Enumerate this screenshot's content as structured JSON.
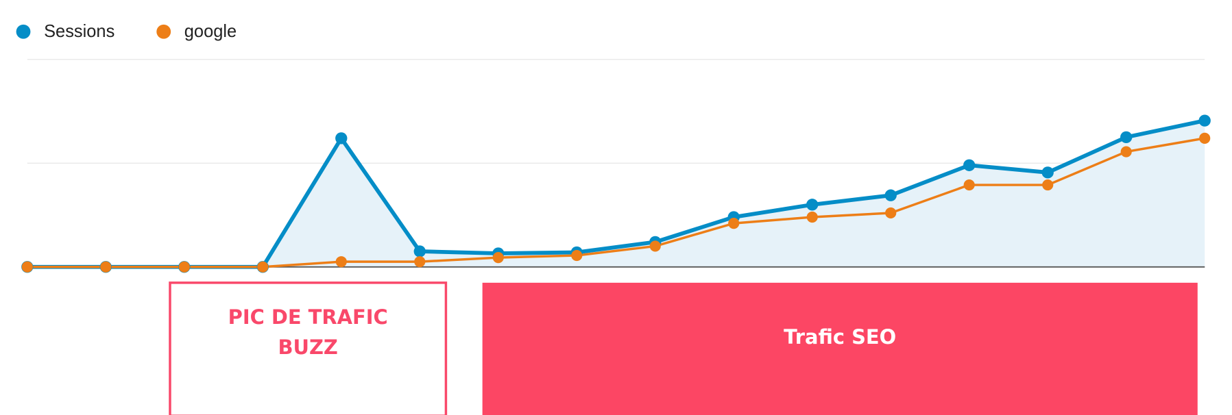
{
  "chart_data": {
    "type": "line",
    "categories": [
      null,
      null,
      null,
      null,
      null,
      null,
      null,
      null,
      null,
      null,
      null,
      null,
      null,
      null,
      null,
      null
    ],
    "series": [
      {
        "name": "Sessions",
        "color": "#058dc7",
        "fill": "#e6f2f9",
        "values": [
          0,
          0,
          0,
          0,
          1.24,
          0.15,
          0.13,
          0.14,
          0.24,
          0.48,
          0.6,
          0.69,
          0.98,
          0.91,
          1.25,
          1.41
        ]
      },
      {
        "name": "google",
        "color": "#ed7e17",
        "values": [
          0,
          0,
          0,
          0,
          0.05,
          0.05,
          0.09,
          0.11,
          0.2,
          0.42,
          0.48,
          0.52,
          0.79,
          0.79,
          1.11,
          1.24
        ]
      }
    ],
    "ylim": [
      0,
      2
    ],
    "yticks": [
      0,
      1,
      2
    ],
    "grid": true,
    "legend": "top-left",
    "annotations": [
      {
        "lines": [
          "PIC DE TRAFIC",
          "BUZZ"
        ],
        "color": "#f9486a",
        "style": "outline"
      },
      {
        "lines": [
          "Trafic SEO"
        ],
        "color": "#fc4664",
        "style": "filled"
      }
    ]
  }
}
